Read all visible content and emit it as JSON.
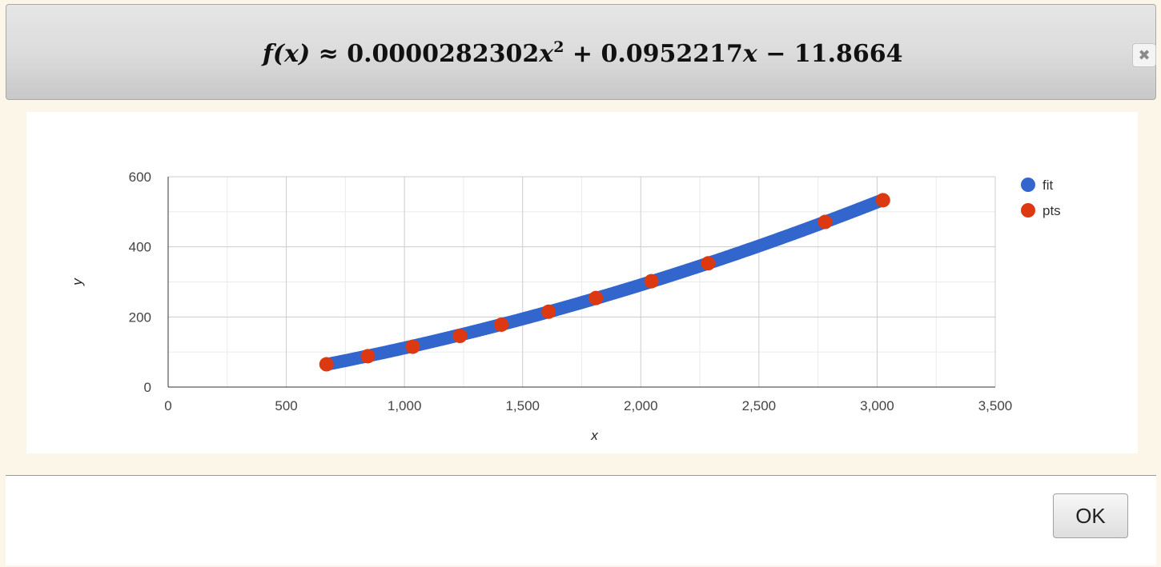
{
  "dialog": {
    "formula": {
      "lhs": "f(x)",
      "approx": "≈",
      "coef2": "0.0000282302",
      "var2": "x",
      "exp2": "2",
      "plus1": "+",
      "coef1": "0.0952217",
      "var1": "x",
      "minus": "−",
      "const": "11.8664"
    },
    "close_icon": "close-icon",
    "ok_label": "OK"
  },
  "chart_data": {
    "type": "scatter",
    "xlabel": "x",
    "ylabel": "y",
    "xlim": [
      0,
      3500
    ],
    "ylim": [
      0,
      600
    ],
    "x_ticks": [
      0,
      500,
      1000,
      1500,
      2000,
      2500,
      3000,
      3500
    ],
    "x_tick_labels": [
      "0",
      "500",
      "1,000",
      "1,500",
      "2,000",
      "2,500",
      "3,000",
      "3,500"
    ],
    "y_ticks": [
      0,
      200,
      400,
      600
    ],
    "y_tick_labels": [
      "0",
      "200",
      "400",
      "600"
    ],
    "grid": true,
    "legend_position": "right",
    "series": [
      {
        "name": "fit",
        "color": "#3366cc",
        "fit_coefficients": {
          "a": 2.82302e-05,
          "b": 0.0952217,
          "c": -11.8664
        },
        "x_range": [
          680,
          3025
        ]
      },
      {
        "name": "pts",
        "color": "#dc3912",
        "points": [
          {
            "x": 670,
            "y": 65
          },
          {
            "x": 845,
            "y": 88
          },
          {
            "x": 1035,
            "y": 115
          },
          {
            "x": 1235,
            "y": 146
          },
          {
            "x": 1410,
            "y": 178
          },
          {
            "x": 1610,
            "y": 215
          },
          {
            "x": 1810,
            "y": 254
          },
          {
            "x": 2045,
            "y": 302
          },
          {
            "x": 2285,
            "y": 353
          },
          {
            "x": 2780,
            "y": 471
          },
          {
            "x": 3025,
            "y": 533
          }
        ]
      }
    ]
  }
}
